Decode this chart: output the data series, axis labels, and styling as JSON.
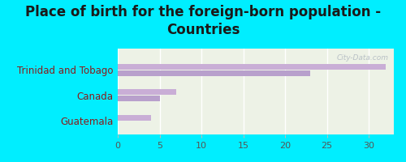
{
  "title": "Place of birth for the foreign-born population -\nCountries",
  "categories": [
    "Trinidad and Tobago",
    "Canada",
    "Guatemala"
  ],
  "bar1_values": [
    32,
    7,
    4
  ],
  "bar2_values": [
    23,
    5,
    0
  ],
  "bar_color1": "#c9aed6",
  "bar_color2": "#b8a0cc",
  "background_color": "#00eeff",
  "plot_bg_color": "#edf2e6",
  "xlim": [
    0,
    33
  ],
  "xticks": [
    0,
    5,
    10,
    15,
    20,
    25,
    30
  ],
  "title_fontsize": 12,
  "label_fontsize": 8.5,
  "tick_fontsize": 8,
  "label_color": "#8b1a1a",
  "watermark": "City-Data.com"
}
